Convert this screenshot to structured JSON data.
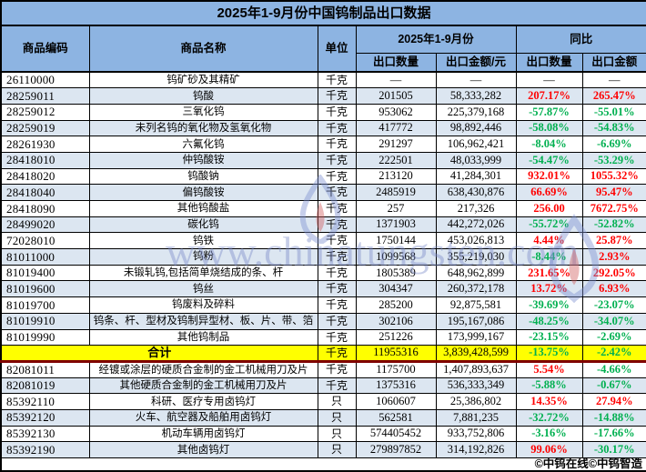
{
  "title": "2025年1-9月份中国钨制品出口数据",
  "columns": {
    "code": "商品编码",
    "name": "商品名称",
    "unit": "单位",
    "period_group": "2025年1-9月份",
    "yoy_group": "同比",
    "qty": "出口数量",
    "value": "出口金额/元",
    "yoy_qty": "出口数量",
    "yoy_value": "出口金额"
  },
  "rows": [
    {
      "code": "26110000",
      "name": "钨矿砂及其精矿",
      "unit": "千克",
      "qty": "—",
      "value": "—",
      "yoy_qty": "—",
      "yoy_value": "—"
    },
    {
      "code": "28259011",
      "name": "钨酸",
      "unit": "千克",
      "qty": "201505",
      "value": "58,333,282",
      "yoy_qty": "207.17%",
      "yoy_value": "265.47%"
    },
    {
      "code": "28259012",
      "name": "三氧化钨",
      "unit": "千克",
      "qty": "953062",
      "value": "225,379,168",
      "yoy_qty": "-57.87%",
      "yoy_value": "-55.01%"
    },
    {
      "code": "28259019",
      "name": "未列名钨的氧化物及氢氧化物",
      "unit": "千克",
      "qty": "417772",
      "value": "98,892,446",
      "yoy_qty": "-58.08%",
      "yoy_value": "-54.83%"
    },
    {
      "code": "28261930",
      "name": "六氟化钨",
      "unit": "千克",
      "qty": "291297",
      "value": "106,962,421",
      "yoy_qty": "-8.04%",
      "yoy_value": "-6.69%"
    },
    {
      "code": "28418010",
      "name": "仲钨酸铵",
      "unit": "千克",
      "qty": "222501",
      "value": "48,033,999",
      "yoy_qty": "-54.47%",
      "yoy_value": "-53.29%"
    },
    {
      "code": "28418020",
      "name": "钨酸钠",
      "unit": "千克",
      "qty": "213120",
      "value": "41,284,301",
      "yoy_qty": "932.01%",
      "yoy_value": "1055.32%"
    },
    {
      "code": "28418040",
      "name": "偏钨酸铵",
      "unit": "千克",
      "qty": "2485919",
      "value": "638,430,876",
      "yoy_qty": "66.69%",
      "yoy_value": "95.47%"
    },
    {
      "code": "28418090",
      "name": "其他钨酸盐",
      "unit": "千克",
      "qty": "257",
      "value": "217,326",
      "yoy_qty": "256.00",
      "yoy_value": "7672.75%"
    },
    {
      "code": "28499020",
      "name": "碳化钨",
      "unit": "千克",
      "qty": "1371903",
      "value": "442,272,026",
      "yoy_qty": "-55.72%",
      "yoy_value": "-52.82%"
    },
    {
      "code": "72028010",
      "name": "钨铁",
      "unit": "千克",
      "qty": "1750144",
      "value": "453,026,813",
      "yoy_qty": "4.44%",
      "yoy_value": "25.87%"
    },
    {
      "code": "81011000",
      "name": "钨粉",
      "unit": "千克",
      "qty": "1099568",
      "value": "355,219,030",
      "yoy_qty": "-8.44%",
      "yoy_value": "2.93%"
    },
    {
      "code": "81019400",
      "name": "未锻轧钨,包括简单烧结成的条、杆",
      "unit": "千克",
      "qty": "1805389",
      "value": "648,962,899",
      "yoy_qty": "231.65%",
      "yoy_value": "292.05%"
    },
    {
      "code": "81019600",
      "name": "钨丝",
      "unit": "千克",
      "qty": "304347",
      "value": "260,372,178",
      "yoy_qty": "13.72%",
      "yoy_value": "6.93%"
    },
    {
      "code": "81019700",
      "name": "钨废料及碎料",
      "unit": "千克",
      "qty": "285200",
      "value": "92,875,581",
      "yoy_qty": "-39.69%",
      "yoy_value": "-23.07%"
    },
    {
      "code": "81019910",
      "name": "钨条、杆、型材及钨制异型材、板、片、带、箔",
      "unit": "千克",
      "qty": "302106",
      "value": "195,167,086",
      "yoy_qty": "-48.25%",
      "yoy_value": "-34.07%"
    },
    {
      "code": "81019990",
      "name": "其他钨制品",
      "unit": "千克",
      "qty": "251226",
      "value": "173,999,167",
      "yoy_qty": "-23.15%",
      "yoy_value": "-2.69%"
    },
    {
      "total": true,
      "code": "",
      "name": "合计",
      "unit": "千克",
      "qty": "11955316",
      "value": "3,839,428,599",
      "yoy_qty": "-13.75%",
      "yoy_value": "-2.42%"
    },
    {
      "code": "82081011",
      "name": "经镀或涂层的硬质合金制的金工机械用刀及片",
      "unit": "千克",
      "qty": "1175700",
      "value": "1,407,893,637",
      "yoy_qty": "5.54%",
      "yoy_value": "-4.66%"
    },
    {
      "code": "82081019",
      "name": "其他硬质合金制的金工机械用刀及片",
      "unit": "千克",
      "qty": "1375316",
      "value": "536,333,349",
      "yoy_qty": "-5.88%",
      "yoy_value": "-0.67%"
    },
    {
      "code": "85392110",
      "name": "科研、医疗专用卤钨灯",
      "unit": "只",
      "qty": "1060607",
      "value": "25,386,802",
      "yoy_qty": "14.35%",
      "yoy_value": "27.94%"
    },
    {
      "code": "85392120",
      "name": "火车、航空器及船舶用卤钨灯",
      "unit": "只",
      "qty": "562581",
      "value": "7,881,235",
      "yoy_qty": "-32.72%",
      "yoy_value": "-14.88%"
    },
    {
      "code": "85392130",
      "name": "机动车辆用卤钨灯",
      "unit": "只",
      "qty": "574405452",
      "value": "933,752,806",
      "yoy_qty": "-3.16%",
      "yoy_value": "-17.66%"
    },
    {
      "code": "85392190",
      "name": "其他卤钨灯",
      "unit": "只",
      "qty": "279897852",
      "value": "314,192,826",
      "yoy_qty": "99.06%",
      "yoy_value": "-30.17%"
    }
  ],
  "total_label": "合计",
  "footer": {
    "credit": "©中钨在线©中钨智造"
  },
  "watermark": {
    "text": "www.chinatungsten.com"
  },
  "colors": {
    "header_blue": "#8db4e2",
    "stripe_blue": "#dce6f1",
    "total_yellow": "#ffff00",
    "increase_red": "#ff0000",
    "decrease_green": "#00b050",
    "total_divider_dark_red": "#7f0000",
    "border_black": "#000000"
  }
}
